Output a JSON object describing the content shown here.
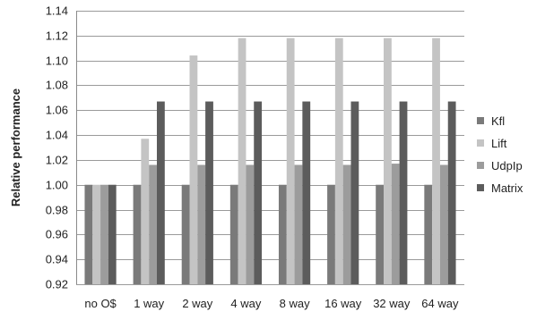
{
  "chart_data": {
    "type": "bar",
    "title": "",
    "xlabel": "",
    "ylabel": "Relative performance",
    "ylim": [
      0.92,
      1.14
    ],
    "ytick_step": 0.02,
    "ytick_decimals": 2,
    "grid": true,
    "legend_position": "right",
    "categories": [
      "no O$",
      "1 way",
      "2 way",
      "4 way",
      "8 way",
      "16 way",
      "32 way",
      "64 way"
    ],
    "series": [
      {
        "name": "Kfl",
        "color": "#7a7a7a",
        "values": [
          1.0,
          1.0,
          1.0,
          1.0,
          1.0,
          1.0,
          1.0,
          1.0
        ]
      },
      {
        "name": "Lift",
        "color": "#c4c4c4",
        "values": [
          1.0,
          1.037,
          1.104,
          1.118,
          1.118,
          1.118,
          1.118,
          1.118
        ]
      },
      {
        "name": "UdpIp",
        "color": "#9c9c9c",
        "values": [
          1.0,
          1.016,
          1.016,
          1.016,
          1.016,
          1.016,
          1.017,
          1.016
        ]
      },
      {
        "name": "Matrix",
        "color": "#5c5c5c",
        "values": [
          1.0,
          1.067,
          1.067,
          1.067,
          1.067,
          1.067,
          1.067,
          1.067
        ]
      }
    ]
  }
}
